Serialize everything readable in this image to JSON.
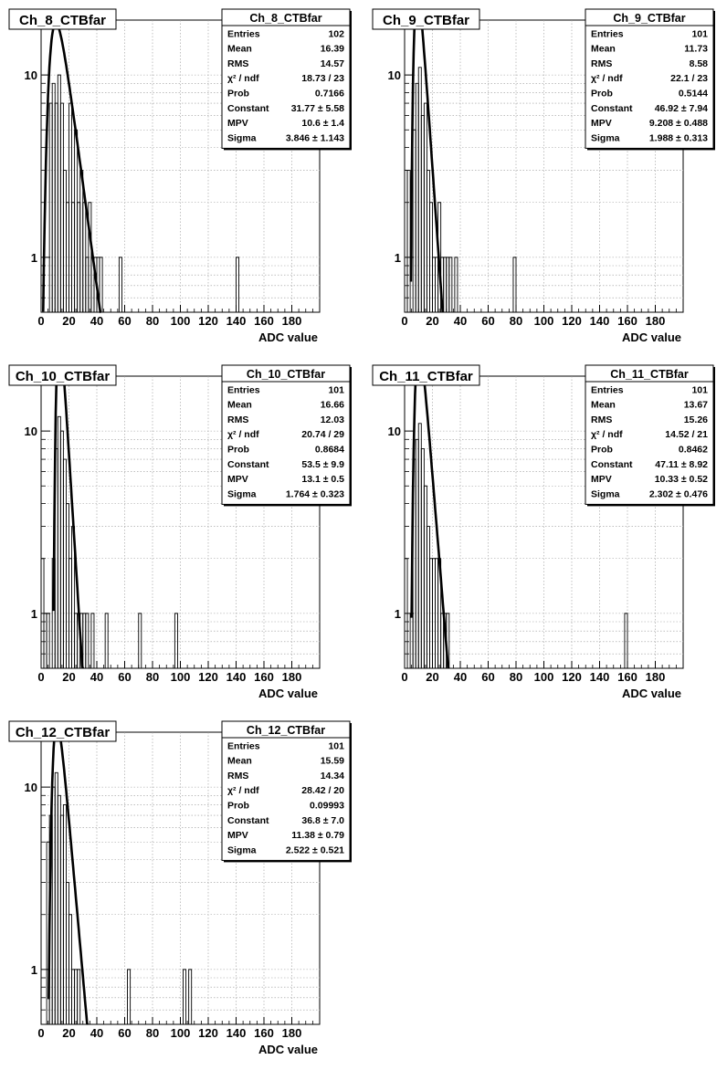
{
  "axis_title": "ADC value",
  "chart_data": [
    {
      "type": "bar",
      "title": "Ch_8_CTBfar",
      "xlabel": "ADC value",
      "ylabel": "",
      "xlim": [
        0,
        200
      ],
      "ylim": [
        0.5,
        20
      ],
      "yscale": "log",
      "grid": true,
      "x_ticks": [
        0,
        20,
        40,
        60,
        80,
        100,
        120,
        140,
        160,
        180
      ],
      "y_ticks": [
        1,
        10
      ],
      "bin_width": 2,
      "bins": [
        [
          6,
          7
        ],
        [
          8,
          9
        ],
        [
          10,
          7
        ],
        [
          12,
          10
        ],
        [
          14,
          7
        ],
        [
          16,
          3
        ],
        [
          18,
          2
        ],
        [
          20,
          7
        ],
        [
          22,
          2
        ],
        [
          24,
          5
        ],
        [
          26,
          2
        ],
        [
          28,
          3
        ],
        [
          30,
          2
        ],
        [
          32,
          1
        ],
        [
          34,
          2
        ],
        [
          36,
          1
        ],
        [
          38,
          1
        ],
        [
          40,
          1
        ],
        [
          42,
          1
        ],
        [
          56,
          1
        ],
        [
          140,
          1
        ]
      ],
      "fit": {
        "mpv": 10.6,
        "sigma": 3.846,
        "constant": 31.77
      },
      "stats": [
        {
          "label": "Entries",
          "value": "102"
        },
        {
          "label": "Mean",
          "value": "16.39"
        },
        {
          "label": "RMS",
          "value": "14.57"
        },
        {
          "label": "χ² / ndf",
          "value": "18.73 / 23"
        },
        {
          "label": "Prob",
          "value": "0.7166"
        },
        {
          "label": "Constant",
          "value": "31.77 ± 5.58"
        },
        {
          "label": "MPV",
          "value": "10.6 ± 1.4"
        },
        {
          "label": "Sigma",
          "value": "3.846 ± 1.143"
        }
      ]
    },
    {
      "type": "bar",
      "title": "Ch_9_CTBfar",
      "xlabel": "ADC value",
      "ylabel": "",
      "xlim": [
        0,
        200
      ],
      "ylim": [
        0.5,
        20
      ],
      "yscale": "log",
      "grid": true,
      "x_ticks": [
        0,
        20,
        40,
        60,
        80,
        100,
        120,
        140,
        160,
        180
      ],
      "y_ticks": [
        1,
        10
      ],
      "bin_width": 2,
      "bins": [
        [
          0,
          3
        ],
        [
          2,
          3
        ],
        [
          6,
          5
        ],
        [
          8,
          9
        ],
        [
          10,
          11
        ],
        [
          12,
          6
        ],
        [
          14,
          7
        ],
        [
          16,
          3
        ],
        [
          18,
          2
        ],
        [
          20,
          1
        ],
        [
          22,
          1
        ],
        [
          24,
          2
        ],
        [
          26,
          1
        ],
        [
          28,
          1
        ],
        [
          30,
          1
        ],
        [
          32,
          1
        ],
        [
          36,
          1
        ],
        [
          78,
          1
        ]
      ],
      "fit": {
        "mpv": 9.208,
        "sigma": 1.988,
        "constant": 46.92
      },
      "stats": [
        {
          "label": "Entries",
          "value": "101"
        },
        {
          "label": "Mean",
          "value": "11.73"
        },
        {
          "label": "RMS",
          "value": "8.58"
        },
        {
          "label": "χ² / ndf",
          "value": "22.1 / 23"
        },
        {
          "label": "Prob",
          "value": "0.5144"
        },
        {
          "label": "Constant",
          "value": "46.92 ± 7.94"
        },
        {
          "label": "MPV",
          "value": "9.208 ± 0.488"
        },
        {
          "label": "Sigma",
          "value": "1.988 ± 0.313"
        }
      ]
    },
    {
      "type": "bar",
      "title": "Ch_10_CTBfar",
      "xlabel": "ADC value",
      "ylabel": "",
      "xlim": [
        0,
        200
      ],
      "ylim": [
        0.5,
        20
      ],
      "yscale": "log",
      "grid": true,
      "x_ticks": [
        0,
        20,
        40,
        60,
        80,
        100,
        120,
        140,
        160,
        180
      ],
      "y_ticks": [
        1,
        10
      ],
      "bin_width": 2,
      "bins": [
        [
          0,
          2
        ],
        [
          2,
          1
        ],
        [
          4,
          1
        ],
        [
          8,
          2
        ],
        [
          10,
          8
        ],
        [
          12,
          12
        ],
        [
          14,
          10
        ],
        [
          16,
          7
        ],
        [
          18,
          4
        ],
        [
          20,
          2
        ],
        [
          22,
          3
        ],
        [
          24,
          1
        ],
        [
          26,
          1
        ],
        [
          28,
          1
        ],
        [
          30,
          1
        ],
        [
          32,
          1
        ],
        [
          36,
          1
        ],
        [
          46,
          1
        ],
        [
          70,
          1
        ],
        [
          96,
          1
        ]
      ],
      "fit": {
        "mpv": 13.1,
        "sigma": 1.764,
        "constant": 53.5
      },
      "stats": [
        {
          "label": "Entries",
          "value": "101"
        },
        {
          "label": "Mean",
          "value": "16.66"
        },
        {
          "label": "RMS",
          "value": "12.03"
        },
        {
          "label": "χ² / ndf",
          "value": "20.74 / 29"
        },
        {
          "label": "Prob",
          "value": "0.8684"
        },
        {
          "label": "Constant",
          "value": "53.5 ± 9.9"
        },
        {
          "label": "MPV",
          "value": "13.1 ± 0.5"
        },
        {
          "label": "Sigma",
          "value": "1.764 ± 0.323"
        }
      ]
    },
    {
      "type": "bar",
      "title": "Ch_11_CTBfar",
      "xlabel": "ADC value",
      "ylabel": "",
      "xlim": [
        0,
        200
      ],
      "ylim": [
        0.5,
        20
      ],
      "yscale": "log",
      "grid": true,
      "x_ticks": [
        0,
        20,
        40,
        60,
        80,
        100,
        120,
        140,
        160,
        180
      ],
      "y_ticks": [
        1,
        10
      ],
      "bin_width": 2,
      "bins": [
        [
          0,
          2
        ],
        [
          4,
          1
        ],
        [
          6,
          7
        ],
        [
          8,
          9
        ],
        [
          10,
          11
        ],
        [
          12,
          8
        ],
        [
          14,
          5
        ],
        [
          16,
          3
        ],
        [
          18,
          2
        ],
        [
          20,
          2
        ],
        [
          22,
          2
        ],
        [
          24,
          2
        ],
        [
          26,
          1
        ],
        [
          28,
          1
        ],
        [
          30,
          1
        ],
        [
          158,
          1
        ]
      ],
      "fit": {
        "mpv": 10.33,
        "sigma": 2.302,
        "constant": 47.11
      },
      "stats": [
        {
          "label": "Entries",
          "value": "101"
        },
        {
          "label": "Mean",
          "value": "13.67"
        },
        {
          "label": "RMS",
          "value": "15.26"
        },
        {
          "label": "χ² / ndf",
          "value": "14.52 / 21"
        },
        {
          "label": "Prob",
          "value": "0.8462"
        },
        {
          "label": "Constant",
          "value": "47.11 ± 8.92"
        },
        {
          "label": "MPV",
          "value": "10.33 ± 0.52"
        },
        {
          "label": "Sigma",
          "value": "2.302 ± 0.476"
        }
      ]
    },
    {
      "type": "bar",
      "title": "Ch_12_CTBfar",
      "xlabel": "ADC value",
      "ylabel": "",
      "xlim": [
        0,
        200
      ],
      "ylim": [
        0.5,
        20
      ],
      "yscale": "log",
      "grid": true,
      "x_ticks": [
        0,
        20,
        40,
        60,
        80,
        100,
        120,
        140,
        160,
        180
      ],
      "y_ticks": [
        1,
        10
      ],
      "bin_width": 2,
      "bins": [
        [
          4,
          5
        ],
        [
          6,
          7
        ],
        [
          8,
          10
        ],
        [
          10,
          12
        ],
        [
          12,
          9
        ],
        [
          14,
          7
        ],
        [
          16,
          8
        ],
        [
          18,
          3
        ],
        [
          20,
          2
        ],
        [
          22,
          1
        ],
        [
          24,
          1
        ],
        [
          26,
          1
        ],
        [
          62,
          1
        ],
        [
          102,
          1
        ],
        [
          106,
          1
        ]
      ],
      "fit": {
        "mpv": 11.38,
        "sigma": 2.522,
        "constant": 36.8
      },
      "stats": [
        {
          "label": "Entries",
          "value": "101"
        },
        {
          "label": "Mean",
          "value": "15.59"
        },
        {
          "label": "RMS",
          "value": "14.34"
        },
        {
          "label": "χ² / ndf",
          "value": "28.42 / 20"
        },
        {
          "label": "Prob",
          "value": "0.09993"
        },
        {
          "label": "Constant",
          "value": "36.8 ± 7.0"
        },
        {
          "label": "MPV",
          "value": "11.38 ± 0.79"
        },
        {
          "label": "Sigma",
          "value": "2.522 ± 0.521"
        }
      ]
    }
  ]
}
